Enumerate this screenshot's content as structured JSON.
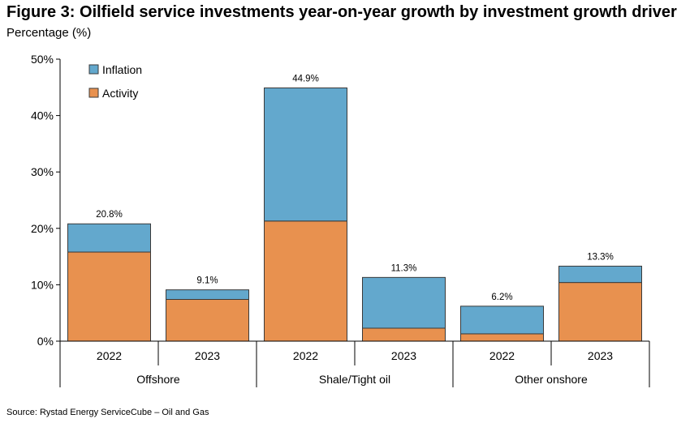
{
  "chart_data": {
    "type": "bar",
    "stacked": true,
    "title": "Figure 3: Oilfield service investments year-on-year growth by investment growth driver",
    "ylabel": "Percentage (%)",
    "xlabel": "",
    "ylim": [
      0,
      50
    ],
    "y_ticks": [
      "0%",
      "10%",
      "20%",
      "30%",
      "40%",
      "50%"
    ],
    "grid": false,
    "legend_position": "top-left",
    "groups": [
      "Offshore",
      "Shale/Tight oil",
      "Other onshore"
    ],
    "categories": [
      "2022",
      "2023",
      "2022",
      "2023",
      "2022",
      "2023"
    ],
    "category_groups": [
      "Offshore",
      "Offshore",
      "Shale/Tight oil",
      "Shale/Tight oil",
      "Other onshore",
      "Other onshore"
    ],
    "series": [
      {
        "name": "Activity",
        "color": "#E8914F",
        "values": [
          15.8,
          7.4,
          21.3,
          2.3,
          1.3,
          10.4
        ]
      },
      {
        "name": "Inflation",
        "color": "#63A8CD",
        "values": [
          5.0,
          1.7,
          23.6,
          9.0,
          4.9,
          2.9
        ]
      }
    ],
    "totals": [
      20.8,
      9.1,
      44.9,
      11.3,
      6.2,
      13.3
    ],
    "total_labels": [
      "20.8%",
      "9.1%",
      "44.9%",
      "11.3%",
      "6.2%",
      "13.3%"
    ],
    "legend_order": [
      "Inflation",
      "Activity"
    ]
  },
  "source": "Source: Rystad Energy ServiceCube – Oil and Gas"
}
